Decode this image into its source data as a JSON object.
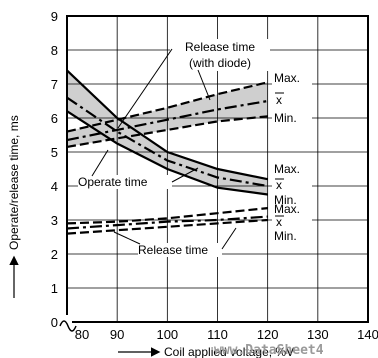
{
  "chart_data": {
    "type": "line",
    "xlabel": "Coil applied voltage, %V",
    "ylabel": "Operate/release time, ms",
    "xlim": [
      80,
      140
    ],
    "ylim": [
      0,
      9
    ],
    "x_ticks": [
      "80",
      "90",
      "100",
      "110",
      "120",
      "130",
      "140"
    ],
    "y_ticks": [
      "0",
      "1",
      "2",
      "3",
      "4",
      "5",
      "6",
      "7",
      "8",
      "9"
    ],
    "x_axis_break": true,
    "grid": true,
    "series": [
      {
        "group": "release_diode",
        "name": "Max.",
        "style": "dashed",
        "x": [
          80,
          90,
          100,
          110,
          120
        ],
        "y": [
          5.6,
          5.95,
          6.3,
          6.7,
          7.05
        ]
      },
      {
        "group": "release_diode",
        "name": "x",
        "style": "dashdot",
        "x": [
          80,
          90,
          100,
          110,
          120
        ],
        "y": [
          5.35,
          5.65,
          5.95,
          6.25,
          6.5
        ]
      },
      {
        "group": "release_diode",
        "name": "Min.",
        "style": "dashed",
        "x": [
          80,
          90,
          100,
          110,
          120
        ],
        "y": [
          5.15,
          5.4,
          5.65,
          5.9,
          6.05
        ]
      },
      {
        "group": "operate",
        "name": "Max.",
        "style": "solid",
        "x": [
          80,
          90,
          100,
          110,
          120
        ],
        "y": [
          7.4,
          6.0,
          5.0,
          4.5,
          4.2
        ]
      },
      {
        "group": "operate",
        "name": "x",
        "style": "dashdot",
        "x": [
          80,
          90,
          100,
          110,
          120
        ],
        "y": [
          6.6,
          5.6,
          4.75,
          4.25,
          4.0
        ]
      },
      {
        "group": "operate",
        "name": "Min.",
        "style": "solid",
        "x": [
          80,
          90,
          100,
          110,
          120
        ],
        "y": [
          6.2,
          5.25,
          4.5,
          3.95,
          3.75
        ]
      },
      {
        "group": "release",
        "name": "Max.",
        "style": "dashed",
        "x": [
          80,
          90,
          100,
          110,
          120
        ],
        "y": [
          2.9,
          2.95,
          3.05,
          3.2,
          3.35
        ]
      },
      {
        "group": "release",
        "name": "x",
        "style": "dashdot",
        "x": [
          80,
          90,
          100,
          110,
          120
        ],
        "y": [
          2.75,
          2.85,
          2.95,
          3.0,
          3.1
        ]
      },
      {
        "group": "release",
        "name": "Min.",
        "style": "dashed",
        "x": [
          80,
          90,
          100,
          110,
          120
        ],
        "y": [
          2.6,
          2.7,
          2.8,
          2.9,
          3.0
        ]
      }
    ],
    "annotations": {
      "release_diode_line1": "Release time",
      "release_diode_line2": "(with diode)",
      "operate": "Operate time",
      "release": "Release time",
      "max": "Max.",
      "mean": "x",
      "min": "Min."
    }
  },
  "watermark": "www.DataSheet4"
}
